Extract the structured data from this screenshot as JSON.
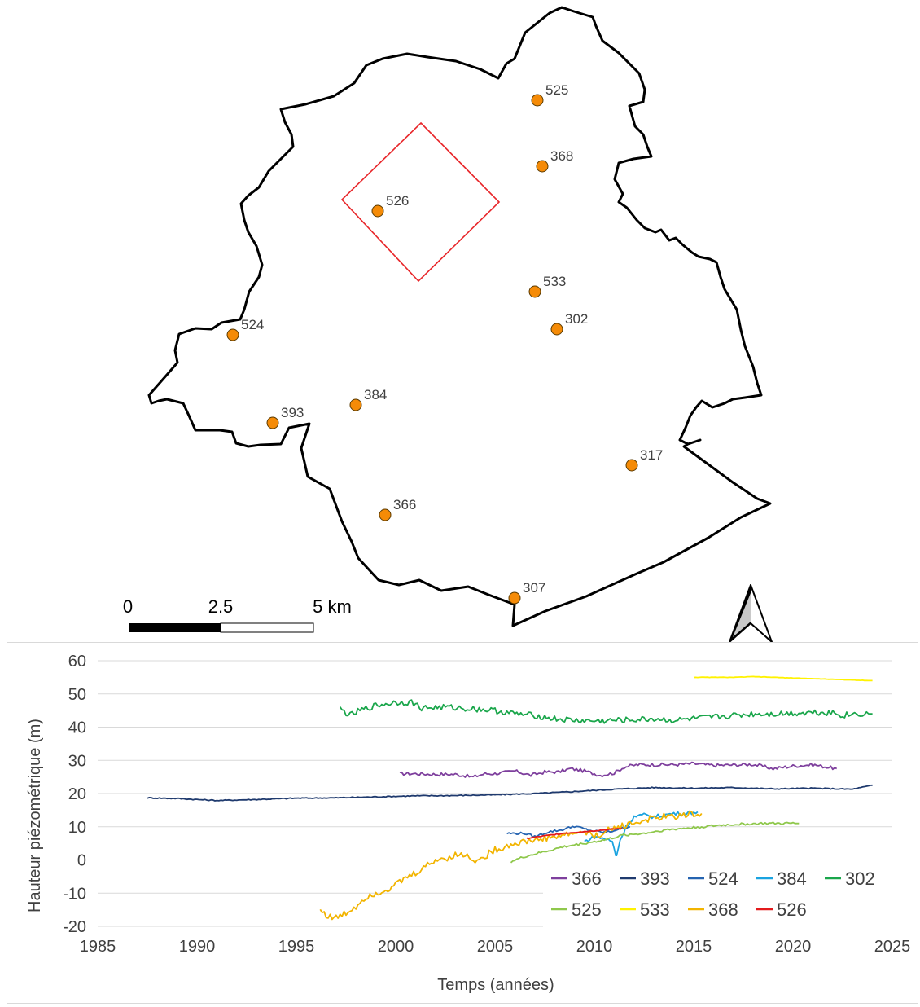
{
  "map": {
    "boundary_color": "#000000",
    "highlight_color": "#e8262a",
    "station_color": "#f58b07",
    "stations": [
      {
        "id": "525"
      },
      {
        "id": "368"
      },
      {
        "id": "526"
      },
      {
        "id": "533"
      },
      {
        "id": "302"
      },
      {
        "id": "524"
      },
      {
        "id": "384"
      },
      {
        "id": "393"
      },
      {
        "id": "317"
      },
      {
        "id": "366"
      },
      {
        "id": "307"
      }
    ],
    "scale_bar": {
      "labels": [
        "0",
        "2.5",
        "5 km"
      ]
    },
    "north_arrow": "north-arrow-icon"
  },
  "chart_data": {
    "type": "line",
    "xlabel": "Temps (années)",
    "ylabel": "Hauteur piézométrique (m)",
    "xlim": [
      1985,
      2025
    ],
    "ylim": [
      -20,
      60
    ],
    "xticks": [
      1985,
      1990,
      1995,
      2000,
      2005,
      2010,
      2015,
      2020,
      2025
    ],
    "yticks": [
      -20,
      -10,
      0,
      10,
      20,
      30,
      40,
      50,
      60
    ],
    "grid": "horizontal",
    "legend_position": "bottom-right",
    "series": [
      {
        "name": "366",
        "color": "#7e3f9d",
        "x": [
          2000.2,
          2001,
          2002,
          2003,
          2003.9,
          2004.5,
          2005,
          2006,
          2006.8,
          2007.5,
          2008.2,
          2008.8,
          2009.5,
          2010.3,
          2011,
          2011.5,
          2012.2,
          2013,
          2014,
          2015,
          2016,
          2017,
          2018,
          2019,
          2020,
          2021,
          2022.2
        ],
        "y": [
          26,
          26,
          25.8,
          25.8,
          25,
          26,
          26,
          26.8,
          25.5,
          26.5,
          26.5,
          27.5,
          26.8,
          25.5,
          26.2,
          28,
          28.7,
          28.7,
          28.7,
          29,
          28.5,
          28.6,
          28.8,
          27.5,
          28.3,
          28.7,
          27.5
        ]
      },
      {
        "name": "393",
        "color": "#1f3a6e",
        "x": [
          1987.5,
          1989,
          1991,
          1993,
          1995,
          1997,
          1999,
          2001,
          2003,
          2005,
          2007,
          2009,
          2011,
          2013,
          2015,
          2017,
          2019,
          2021,
          2023,
          2024
        ],
        "y": [
          18.7,
          18.5,
          17.9,
          18.2,
          18.6,
          18.7,
          19.0,
          19.3,
          19.4,
          19.6,
          20.0,
          20.6,
          21.3,
          21.8,
          21.6,
          21.8,
          21.4,
          21.6,
          21.3,
          22.5
        ]
      },
      {
        "name": "524",
        "color": "#2563b0",
        "x": [
          2005.6,
          2006.5,
          2007,
          2007.7,
          2008.3,
          2009,
          2009.7,
          2010.4,
          2010.8,
          2011.3,
          2011.8
        ],
        "y": [
          8,
          8,
          7,
          8.5,
          9,
          10.2,
          9,
          8.3,
          8.5,
          9.5,
          10
        ]
      },
      {
        "name": "384",
        "color": "#1aa3e0",
        "x": [
          2009.5,
          2010,
          2010.5,
          2010.9,
          2011.1,
          2011.3,
          2011.6,
          2012,
          2012.5,
          2013,
          2013.5,
          2014,
          2014.5,
          2015.2
        ],
        "y": [
          5.5,
          7,
          6.5,
          5.5,
          1,
          6,
          10,
          13,
          13.5,
          13,
          13.5,
          14,
          14,
          14.5
        ]
      },
      {
        "name": "302",
        "color": "#1aa64b",
        "x": [
          1997.2,
          1997.7,
          1998.2,
          1999,
          2000,
          2000.8,
          2001.3,
          2002.5,
          2004,
          2005,
          2006,
          2007,
          2008,
          2009,
          2010,
          2011,
          2012,
          2013,
          2014,
          2015,
          2016,
          2017,
          2018,
          2019,
          2020,
          2021,
          2022,
          2022.5,
          2023,
          2024
        ],
        "y": [
          45.5,
          43.5,
          45,
          46.5,
          47.5,
          47.5,
          45.8,
          46,
          45.5,
          45,
          44,
          43.5,
          42.5,
          42,
          41.8,
          42,
          42.2,
          42.5,
          42,
          42.5,
          43,
          43.5,
          44,
          44,
          44.2,
          44.5,
          44.4,
          43.5,
          44,
          44
        ]
      },
      {
        "name": "525",
        "color": "#8fc84c",
        "x": [
          2005.8,
          2006.5,
          2007.5,
          2008.5,
          2009.5,
          2010.5,
          2011.5,
          2012.5,
          2013.5,
          2014.5,
          2015.5,
          2016.5,
          2017.5,
          2018.5,
          2019.5,
          2020.3
        ],
        "y": [
          -0.5,
          1,
          2.5,
          4,
          5,
          6,
          7.5,
          8,
          9,
          9.5,
          10,
          10.5,
          10.8,
          11,
          11,
          11
        ]
      },
      {
        "name": "533",
        "color": "#fff200",
        "x": [
          2015,
          2016,
          2017,
          2018,
          2019,
          2020,
          2021,
          2022,
          2023,
          2024
        ],
        "y": [
          55,
          55,
          55,
          55.2,
          55,
          54.8,
          54.6,
          54.4,
          54.2,
          54
        ]
      },
      {
        "name": "368",
        "color": "#f2b400",
        "x": [
          1996.2,
          1996.6,
          1997,
          1997.5,
          1998,
          1998.5,
          1999,
          1999.5,
          2000,
          2000.5,
          2001,
          2001.5,
          2002,
          2002.5,
          2003,
          2003.5,
          2004,
          2004.3,
          2004.7,
          2005,
          2005.5,
          2006,
          2006.5,
          2007,
          2007.5,
          2008,
          2008.5,
          2009,
          2009.5,
          2010,
          2010.5,
          2011,
          2011.5,
          2012,
          2012.5,
          2013,
          2013.5,
          2014,
          2014.5,
          2015,
          2015.4
        ],
        "y": [
          -15,
          -17,
          -17.5,
          -16,
          -14,
          -11,
          -10,
          -9,
          -7.5,
          -5.5,
          -4,
          -2,
          0,
          0.5,
          1.5,
          1.5,
          0,
          0,
          2,
          3,
          4,
          5,
          5.5,
          6,
          6.5,
          7,
          7.5,
          8,
          8.5,
          7,
          8.5,
          9.5,
          10.5,
          11,
          12,
          12.5,
          13,
          13,
          13.5,
          14,
          14
        ]
      },
      {
        "name": "526",
        "color": "#e31a1c",
        "x": [
          2006.6,
          2007.2,
          2007.8,
          2008.4,
          2009,
          2009.6,
          2010.2,
          2010.8,
          2011.4
        ],
        "y": [
          6.5,
          7,
          7.5,
          8,
          8.3,
          8.6,
          8.9,
          9.2,
          9.5
        ]
      }
    ]
  }
}
